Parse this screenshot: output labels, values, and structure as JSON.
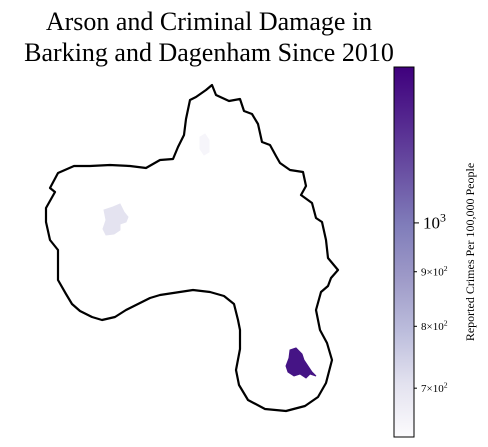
{
  "title": {
    "line1": "Arson and Criminal Damage in",
    "line2": "Barking and Dagenham Since 2010"
  },
  "colorbar": {
    "label": "Reported Crimes Per 100,000 People",
    "scale": "log",
    "colormap": "Purples",
    "range": [
      630,
      1400
    ],
    "colors": [
      "#fcfbfd",
      "#e3e2ef",
      "#bcbddc",
      "#9e9ac8",
      "#807dba",
      "#6a51a3",
      "#54278f",
      "#3f007d"
    ],
    "ticks": [
      {
        "value": 700,
        "base": "7×10",
        "exp": "2",
        "major": false
      },
      {
        "value": 800,
        "base": "8×10",
        "exp": "2",
        "major": false
      },
      {
        "value": 900,
        "base": "9×10",
        "exp": "2",
        "major": false
      },
      {
        "value": 1000,
        "base": "10",
        "exp": "3",
        "major": true
      }
    ]
  },
  "map": {
    "outline_color": "#000000",
    "regions": [
      {
        "name": "north area",
        "value": 650,
        "color": "#f6f5fa"
      },
      {
        "name": "west area",
        "value": 780,
        "color": "#e4e3f0"
      },
      {
        "name": "south-east area",
        "value": 1400,
        "color": "#451485"
      }
    ]
  }
}
